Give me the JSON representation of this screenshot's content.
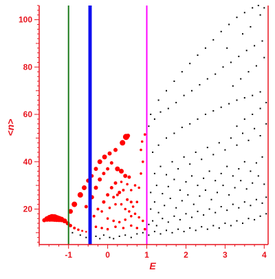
{
  "chart_data": {
    "type": "scatter",
    "title": "",
    "xlabel": "E",
    "ylabel": "<n>",
    "xlim": [
      -1.75,
      4.1
    ],
    "ylim": [
      5,
      106
    ],
    "grid": false,
    "legend": "none",
    "xticks": [
      -1,
      0,
      1,
      2,
      3,
      4
    ],
    "yticks": [
      20,
      40,
      60,
      80,
      100
    ],
    "colors": {
      "axes": "#e8141e",
      "scatter": "#000000",
      "highlight": "#ff0000",
      "line_green": "#1a7a1a",
      "line_blue": "#1010f0",
      "line_magenta": "#ff00ff"
    },
    "vertical_lines": [
      {
        "x": -1.0,
        "color": "#1a7a1a",
        "style": "thin"
      },
      {
        "x": -0.45,
        "color": "#1010f0",
        "style": "thick"
      },
      {
        "x": 1.0,
        "color": "#ff00ff",
        "style": "thin"
      }
    ],
    "series": [
      {
        "color": "#ff0000",
        "marker": "sized-dot",
        "points": [
          [
            -1.62,
            15.3,
            3.0
          ],
          [
            -1.55,
            15.8,
            4.0
          ],
          [
            -1.48,
            16.1,
            5.0
          ],
          [
            -1.42,
            16.3,
            5.5
          ],
          [
            -1.36,
            16.2,
            5.5
          ],
          [
            -1.3,
            16.0,
            5.0
          ],
          [
            -1.24,
            15.8,
            4.5
          ],
          [
            -1.18,
            15.6,
            4.0
          ],
          [
            -1.1,
            15.0,
            3.5
          ],
          [
            -1.02,
            14.0,
            3.0
          ],
          [
            -0.95,
            13.0,
            2.5
          ],
          [
            -0.85,
            12.0,
            2.0
          ],
          [
            -0.75,
            11.3,
            1.8
          ],
          [
            -0.65,
            10.8,
            1.5
          ],
          [
            -0.55,
            10.4,
            1.3
          ],
          [
            -0.95,
            19.0,
            3.5
          ],
          [
            -0.85,
            22.0,
            4.0
          ],
          [
            -0.7,
            26.0,
            4.0
          ],
          [
            -0.6,
            29.0,
            3.5
          ],
          [
            -0.5,
            32.0,
            3.0
          ],
          [
            -0.4,
            34.0,
            2.5
          ],
          [
            -0.3,
            37.0,
            3.0
          ],
          [
            -0.2,
            40.0,
            3.5
          ],
          [
            -0.08,
            42.0,
            3.5
          ],
          [
            0.05,
            43.5,
            3.0
          ],
          [
            0.2,
            45.0,
            3.0
          ],
          [
            0.38,
            48.0,
            4.0
          ],
          [
            0.47,
            50.5,
            4.5
          ],
          [
            0.52,
            51.0,
            3.0
          ],
          [
            -0.55,
            21.0,
            2.5
          ],
          [
            -0.4,
            25.0,
            3.0
          ],
          [
            -0.3,
            29.0,
            3.0
          ],
          [
            -0.2,
            32.5,
            3.0
          ],
          [
            -0.1,
            35.0,
            2.5
          ],
          [
            0.0,
            37.0,
            2.5
          ],
          [
            0.1,
            39.5,
            2.5
          ],
          [
            0.25,
            37.0,
            3.5
          ],
          [
            0.35,
            36.0,
            3.5
          ],
          [
            0.45,
            34.0,
            3.0
          ],
          [
            0.55,
            33.5,
            2.5
          ],
          [
            -0.35,
            17.0,
            2.0
          ],
          [
            -0.25,
            20.0,
            2.0
          ],
          [
            -0.1,
            23.0,
            2.5
          ],
          [
            0.0,
            26.0,
            2.5
          ],
          [
            0.1,
            29.0,
            2.5
          ],
          [
            0.2,
            31.0,
            2.5
          ],
          [
            0.3,
            27.0,
            2.5
          ],
          [
            0.4,
            28.0,
            2.0
          ],
          [
            0.25,
            26.0,
            2.0
          ],
          [
            0.15,
            25.0,
            2.0
          ],
          [
            0.5,
            24.0,
            2.0
          ],
          [
            0.6,
            23.0,
            2.0
          ],
          [
            -0.15,
            19.0,
            1.8
          ],
          [
            0.05,
            20.5,
            1.8
          ],
          [
            0.2,
            22.0,
            1.8
          ],
          [
            0.35,
            22.0,
            1.8
          ],
          [
            0.45,
            20.0,
            1.8
          ],
          [
            0.55,
            19.0,
            1.8
          ],
          [
            0.65,
            21.0,
            1.8
          ],
          [
            0.75,
            23.0,
            1.8
          ],
          [
            0.8,
            29.0,
            1.8
          ],
          [
            0.85,
            35.0,
            1.8
          ],
          [
            0.9,
            40.0,
            1.8
          ],
          [
            0.85,
            45.0,
            1.8
          ],
          [
            0.88,
            48.5,
            1.8
          ],
          [
            0.95,
            51.5,
            1.8
          ],
          [
            0.0,
            16.0,
            1.8
          ],
          [
            0.15,
            15.0,
            1.8
          ],
          [
            0.3,
            14.5,
            1.8
          ],
          [
            0.45,
            15.5,
            1.8
          ],
          [
            0.6,
            17.0,
            1.8
          ],
          [
            0.7,
            18.0,
            1.8
          ],
          [
            0.8,
            16.5,
            1.8
          ],
          [
            0.9,
            15.0,
            1.8
          ],
          [
            -0.3,
            12.5,
            1.8
          ],
          [
            -0.15,
            12.0,
            1.8
          ],
          [
            0.0,
            11.5,
            1.8
          ],
          [
            0.2,
            12.5,
            1.8
          ],
          [
            0.4,
            12.0,
            1.8
          ],
          [
            0.6,
            13.0,
            1.8
          ],
          [
            0.75,
            12.0,
            1.8
          ],
          [
            0.95,
            11.5,
            1.8
          ],
          [
            0.5,
            30.5,
            1.8
          ],
          [
            0.6,
            28.0,
            1.8
          ],
          [
            0.7,
            30.0,
            1.8
          ],
          [
            0.35,
            31.5,
            1.8
          ]
        ]
      },
      {
        "color": "#000000",
        "marker": "dot",
        "points": [
          [
            -0.9,
            10.0
          ],
          [
            -0.7,
            9.0
          ],
          [
            -0.55,
            8.0
          ],
          [
            -0.45,
            9.5
          ],
          [
            -0.3,
            8.5
          ],
          [
            -0.2,
            7.5
          ],
          [
            -0.1,
            9.0
          ],
          [
            0.05,
            8.0
          ],
          [
            0.15,
            7.5
          ],
          [
            0.3,
            8.5
          ],
          [
            0.45,
            9.0
          ],
          [
            0.6,
            8.0
          ],
          [
            0.75,
            9.5
          ],
          [
            0.9,
            10.0
          ],
          [
            1.05,
            9.0
          ],
          [
            1.2,
            10.5
          ],
          [
            1.35,
            9.5
          ],
          [
            1.5,
            11.0
          ],
          [
            1.65,
            10.0
          ],
          [
            1.8,
            11.5
          ],
          [
            1.95,
            10.5
          ],
          [
            2.1,
            12.0
          ],
          [
            2.25,
            11.0
          ],
          [
            2.4,
            12.5
          ],
          [
            2.55,
            11.5
          ],
          [
            2.7,
            13.0
          ],
          [
            2.85,
            12.0
          ],
          [
            3.0,
            14.0
          ],
          [
            3.15,
            13.0
          ],
          [
            3.3,
            15.0
          ],
          [
            3.45,
            14.0
          ],
          [
            3.6,
            16.0
          ],
          [
            3.75,
            15.5
          ],
          [
            3.9,
            17.0
          ],
          [
            4.05,
            18.0
          ],
          [
            1.05,
            13.5
          ],
          [
            1.15,
            15.0
          ],
          [
            1.25,
            13.0
          ],
          [
            1.4,
            16.0
          ],
          [
            1.55,
            14.5
          ],
          [
            1.7,
            17.0
          ],
          [
            1.85,
            15.5
          ],
          [
            2.0,
            18.0
          ],
          [
            2.15,
            16.5
          ],
          [
            2.3,
            19.0
          ],
          [
            2.45,
            17.5
          ],
          [
            2.6,
            20.0
          ],
          [
            2.75,
            18.5
          ],
          [
            2.9,
            21.0
          ],
          [
            3.05,
            19.5
          ],
          [
            3.2,
            22.0
          ],
          [
            3.35,
            20.5
          ],
          [
            3.5,
            23.0
          ],
          [
            3.65,
            21.5
          ],
          [
            3.8,
            24.0
          ],
          [
            3.95,
            22.5
          ],
          [
            4.05,
            25.0
          ],
          [
            1.1,
            20.0
          ],
          [
            1.2,
            23.0
          ],
          [
            1.3,
            18.5
          ],
          [
            1.45,
            21.5
          ],
          [
            1.6,
            24.5
          ],
          [
            1.75,
            20.5
          ],
          [
            1.9,
            23.5
          ],
          [
            2.05,
            26.0
          ],
          [
            2.2,
            22.0
          ],
          [
            2.35,
            25.5
          ],
          [
            2.5,
            28.0
          ],
          [
            2.65,
            24.0
          ],
          [
            2.8,
            27.0
          ],
          [
            2.95,
            30.0
          ],
          [
            3.1,
            26.0
          ],
          [
            3.25,
            29.0
          ],
          [
            3.4,
            32.0
          ],
          [
            3.55,
            28.5
          ],
          [
            3.7,
            31.0
          ],
          [
            3.85,
            34.0
          ],
          [
            4.0,
            30.5
          ],
          [
            1.1,
            27.0
          ],
          [
            1.25,
            30.0
          ],
          [
            1.4,
            26.5
          ],
          [
            1.55,
            29.5
          ],
          [
            1.7,
            32.5
          ],
          [
            1.85,
            28.0
          ],
          [
            2.0,
            31.5
          ],
          [
            2.15,
            34.0
          ],
          [
            2.3,
            30.0
          ],
          [
            2.45,
            33.0
          ],
          [
            2.6,
            36.0
          ],
          [
            2.75,
            32.0
          ],
          [
            2.9,
            35.0
          ],
          [
            3.05,
            38.0
          ],
          [
            3.2,
            34.0
          ],
          [
            3.35,
            37.0
          ],
          [
            3.5,
            40.0
          ],
          [
            3.65,
            36.0
          ],
          [
            3.8,
            39.5
          ],
          [
            3.95,
            42.0
          ],
          [
            1.2,
            35.0
          ],
          [
            1.35,
            38.0
          ],
          [
            1.5,
            34.5
          ],
          [
            1.65,
            40.0
          ],
          [
            1.8,
            37.0
          ],
          [
            1.95,
            42.0
          ],
          [
            2.1,
            39.0
          ],
          [
            2.25,
            44.0
          ],
          [
            2.4,
            41.0
          ],
          [
            2.55,
            46.0
          ],
          [
            2.7,
            43.0
          ],
          [
            2.85,
            48.0
          ],
          [
            3.0,
            45.0
          ],
          [
            3.15,
            50.0
          ],
          [
            3.3,
            47.0
          ],
          [
            3.45,
            52.0
          ],
          [
            3.6,
            49.0
          ],
          [
            3.75,
            54.0
          ],
          [
            3.9,
            51.0
          ],
          [
            4.05,
            56.0
          ],
          [
            1.15,
            44.0
          ],
          [
            1.3,
            47.0
          ],
          [
            1.5,
            50.0
          ],
          [
            1.7,
            52.0
          ],
          [
            1.9,
            54.5
          ],
          [
            2.1,
            56.0
          ],
          [
            2.3,
            58.0
          ],
          [
            2.5,
            60.0
          ],
          [
            2.7,
            61.5
          ],
          [
            2.9,
            63.0
          ],
          [
            3.1,
            64.5
          ],
          [
            3.3,
            66.0
          ],
          [
            3.5,
            67.0
          ],
          [
            3.7,
            68.0
          ],
          [
            3.9,
            69.5
          ],
          [
            1.05,
            55.0
          ],
          [
            1.2,
            58.0
          ],
          [
            1.35,
            61.0
          ],
          [
            1.55,
            62.5
          ],
          [
            1.75,
            65.0
          ],
          [
            1.95,
            68.0
          ],
          [
            2.15,
            70.0
          ],
          [
            2.35,
            72.5
          ],
          [
            2.55,
            75.0
          ],
          [
            2.75,
            77.0
          ],
          [
            2.95,
            80.0
          ],
          [
            3.15,
            82.0
          ],
          [
            3.35,
            84.5
          ],
          [
            3.55,
            87.0
          ],
          [
            3.75,
            89.0
          ],
          [
            3.95,
            91.0
          ],
          [
            1.1,
            60.0
          ],
          [
            1.3,
            66.0
          ],
          [
            1.5,
            70.0
          ],
          [
            1.7,
            74.0
          ],
          [
            1.9,
            78.0
          ],
          [
            2.1,
            81.5
          ],
          [
            2.3,
            85.0
          ],
          [
            2.5,
            88.0
          ],
          [
            2.7,
            91.5
          ],
          [
            2.9,
            95.0
          ],
          [
            3.1,
            98.0
          ],
          [
            3.3,
            101.0
          ],
          [
            3.5,
            103.0
          ],
          [
            3.7,
            105.0
          ],
          [
            3.85,
            106.0
          ],
          [
            3.2,
            72.0
          ],
          [
            3.4,
            75.0
          ],
          [
            3.6,
            78.0
          ],
          [
            3.8,
            80.5
          ],
          [
            4.0,
            84.0
          ],
          [
            3.3,
            55.0
          ],
          [
            3.5,
            58.0
          ],
          [
            3.7,
            60.0
          ],
          [
            3.9,
            62.5
          ],
          [
            4.05,
            65.0
          ],
          [
            3.05,
            88.0
          ],
          [
            3.45,
            94.0
          ],
          [
            3.65,
            97.0
          ],
          [
            3.9,
            102.0
          ],
          [
            4.0,
            105.0
          ]
        ]
      }
    ]
  }
}
